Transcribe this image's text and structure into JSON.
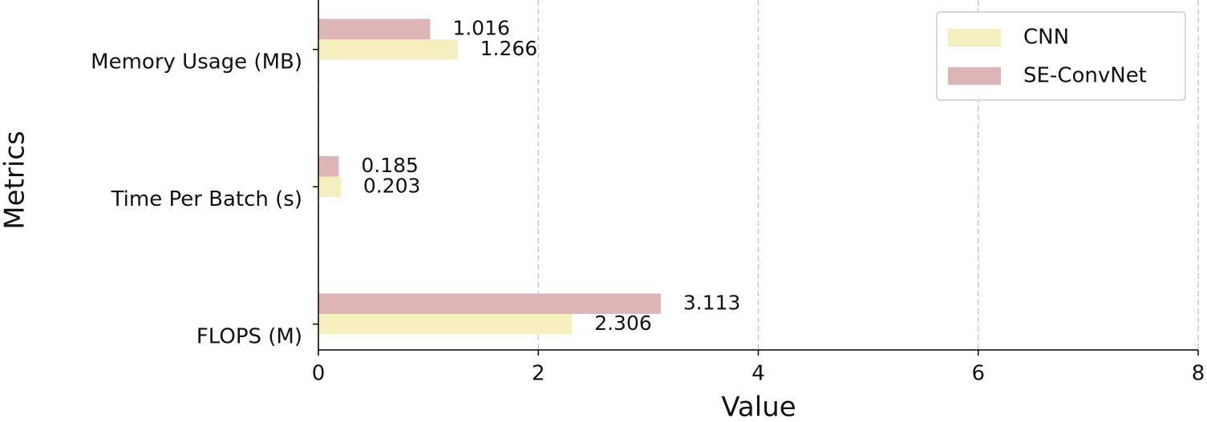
{
  "chart_data": {
    "type": "bar",
    "orientation": "horizontal",
    "x_label": "Value",
    "y_label": "Metrics",
    "categories": [
      "Memory Usage (MB)",
      "Time Per Batch (s)",
      "FLOPS (M)"
    ],
    "series": [
      {
        "name": "CNN",
        "color": "#f5efc0",
        "values": [
          1.266,
          0.203,
          2.306
        ]
      },
      {
        "name": "SE-ConvNet",
        "color": "#ddb5b6",
        "values": [
          1.016,
          0.185,
          3.113
        ]
      }
    ],
    "xlim": [
      0,
      8
    ],
    "xticks": [
      0,
      2,
      4,
      6,
      8
    ],
    "grid": true,
    "legend": "upper right"
  }
}
